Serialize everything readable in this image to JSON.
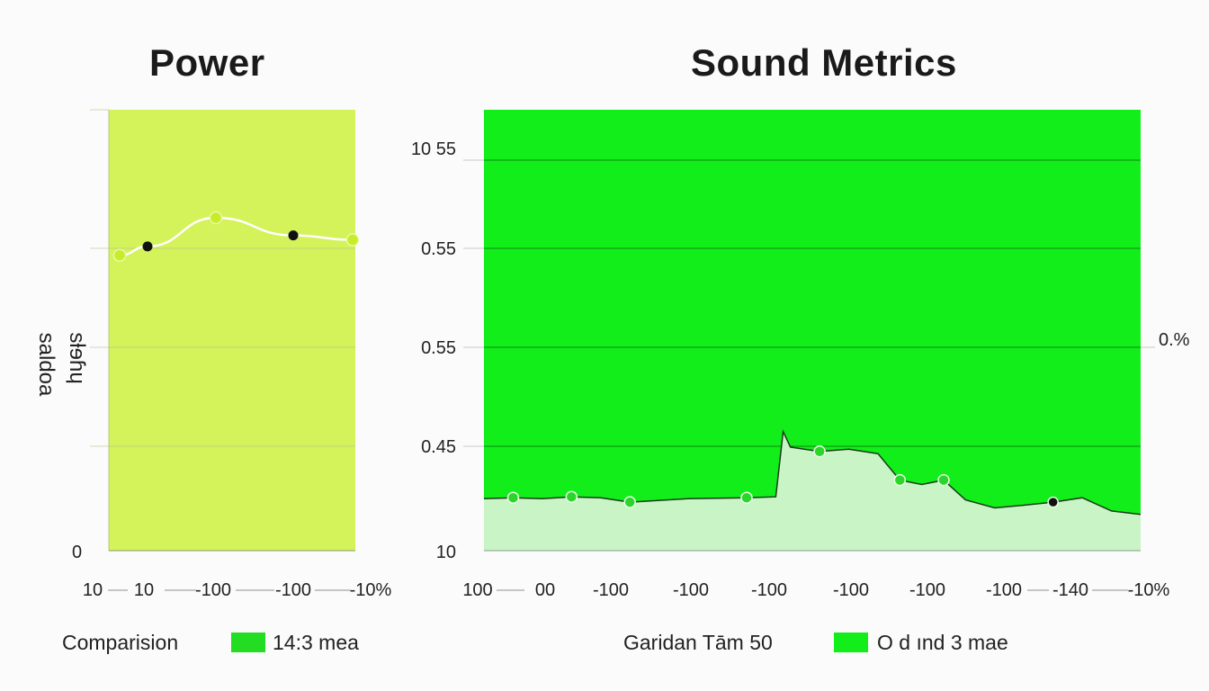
{
  "chart_data": [
    {
      "type": "line",
      "title": "Power",
      "ylabel_outer": "saldoa",
      "ylabel_inner": "sƚɘɦɥ",
      "yticks": [
        "0"
      ],
      "xticks": [
        "10",
        "10",
        "-100",
        "-100",
        "-10%"
      ],
      "x": [
        0,
        1,
        2,
        3,
        4
      ],
      "series": [
        {
          "values": [
            0.67,
            0.69,
            0.755,
            0.715,
            0.705
          ]
        }
      ],
      "ylim": [
        0,
        1
      ],
      "grid": true,
      "colors": {
        "background": "#d4f25a",
        "line": "#ffffff",
        "point_light": "#c8ec2a",
        "point_dark": "#111111"
      },
      "legend": {
        "label": "Comparision",
        "swatch_color": "#22dd22",
        "swatch_label": "14:3 mea"
      }
    },
    {
      "type": "area",
      "title": "Sound Metrics",
      "yticks": [
        "10 55",
        "0.55",
        "0.55",
        "0.45",
        "10"
      ],
      "right_label": "0.%",
      "xticks": [
        "100",
        "00",
        "-100",
        "-100",
        "-100",
        "-100",
        "-100",
        "-100",
        "-140",
        "-10%"
      ],
      "x": [
        0,
        0.4,
        0.8,
        1.2,
        1.6,
        2.0,
        2.8,
        3.6,
        4.0,
        4.1,
        4.2,
        4.6,
        5.0,
        5.4,
        5.7,
        6.0,
        6.3,
        6.6,
        7.0,
        7.4,
        7.8,
        8.2,
        8.6,
        9.0
      ],
      "series": [
        {
          "values": [
            0.118,
            0.12,
            0.118,
            0.122,
            0.12,
            0.11,
            0.118,
            0.12,
            0.122,
            0.27,
            0.235,
            0.225,
            0.23,
            0.22,
            0.16,
            0.15,
            0.16,
            0.115,
            0.097,
            0.103,
            0.11,
            0.12,
            0.09,
            0.082
          ]
        }
      ],
      "ylim": [
        0,
        1
      ],
      "grid": true,
      "colors": {
        "background": "#12ee1a",
        "fill": "#c9f5c6",
        "line": "#1a3a1a",
        "point": "#2ad62a",
        "point_dark": "#111111"
      },
      "legend": {
        "label": "Garidan Tām  50",
        "swatch_color": "#12ee1a",
        "swatch_label": "O d ınd 3 mae"
      }
    }
  ]
}
